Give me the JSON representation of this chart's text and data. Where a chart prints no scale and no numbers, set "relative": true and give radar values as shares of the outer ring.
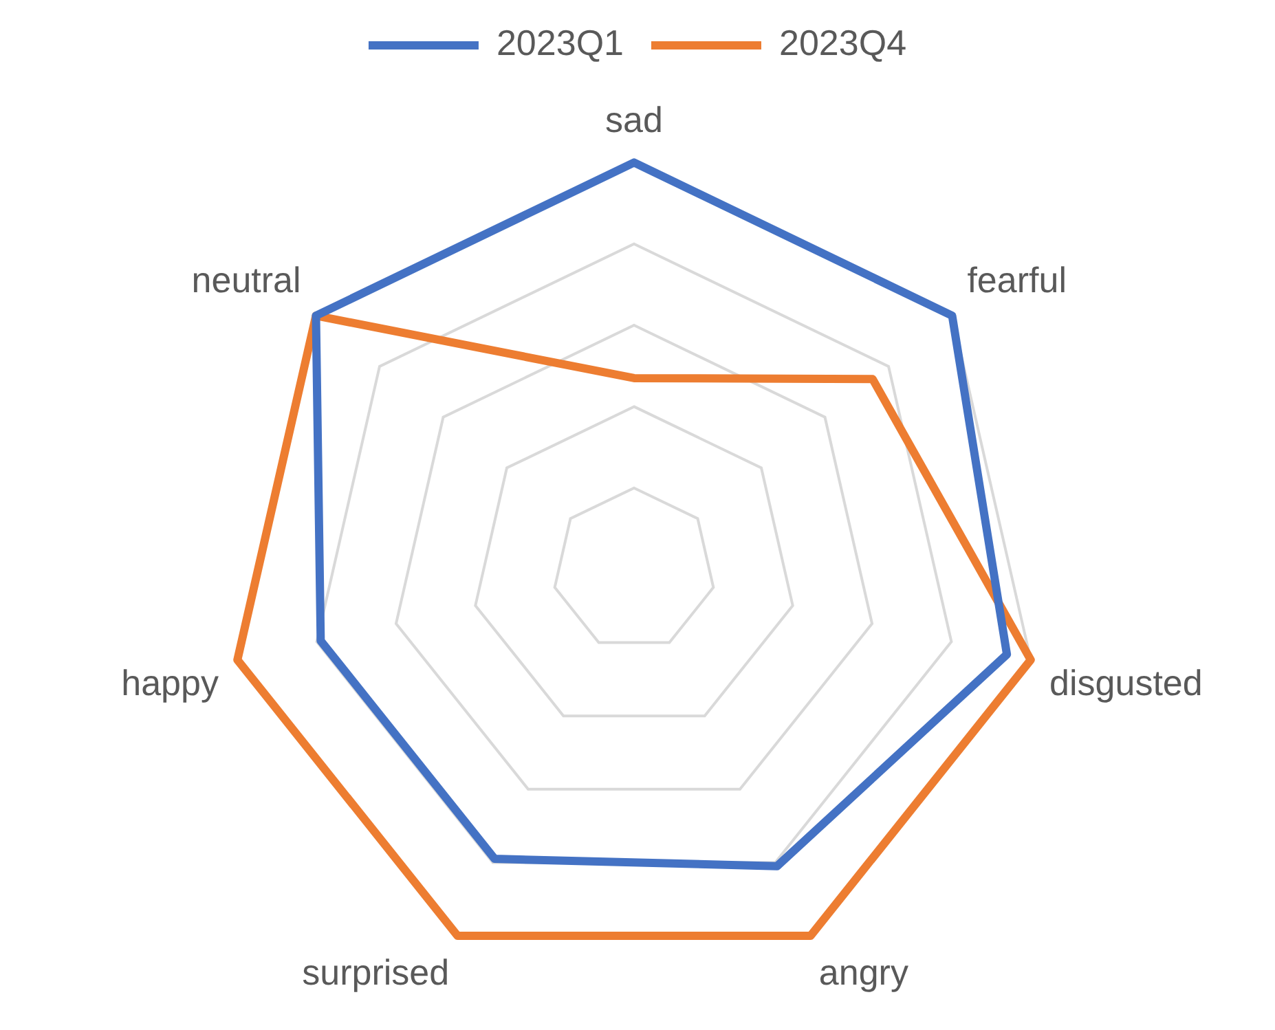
{
  "chart_data": {
    "type": "radar",
    "relative": true,
    "categories": [
      "sad",
      "fearful",
      "disgusted",
      "angry",
      "surprised",
      "happy",
      "neutral"
    ],
    "series": [
      {
        "name": "2023Q1",
        "color": "#4472c4",
        "values": [
          1.0,
          1.0,
          0.94,
          0.81,
          0.79,
          0.79,
          1.0
        ]
      },
      {
        "name": "2023Q4",
        "color": "#ed7d31",
        "values": [
          0.47,
          0.75,
          1.0,
          1.0,
          1.0,
          1.0,
          1.0
        ]
      }
    ],
    "grid": true,
    "legend": "top",
    "marker": "none"
  }
}
